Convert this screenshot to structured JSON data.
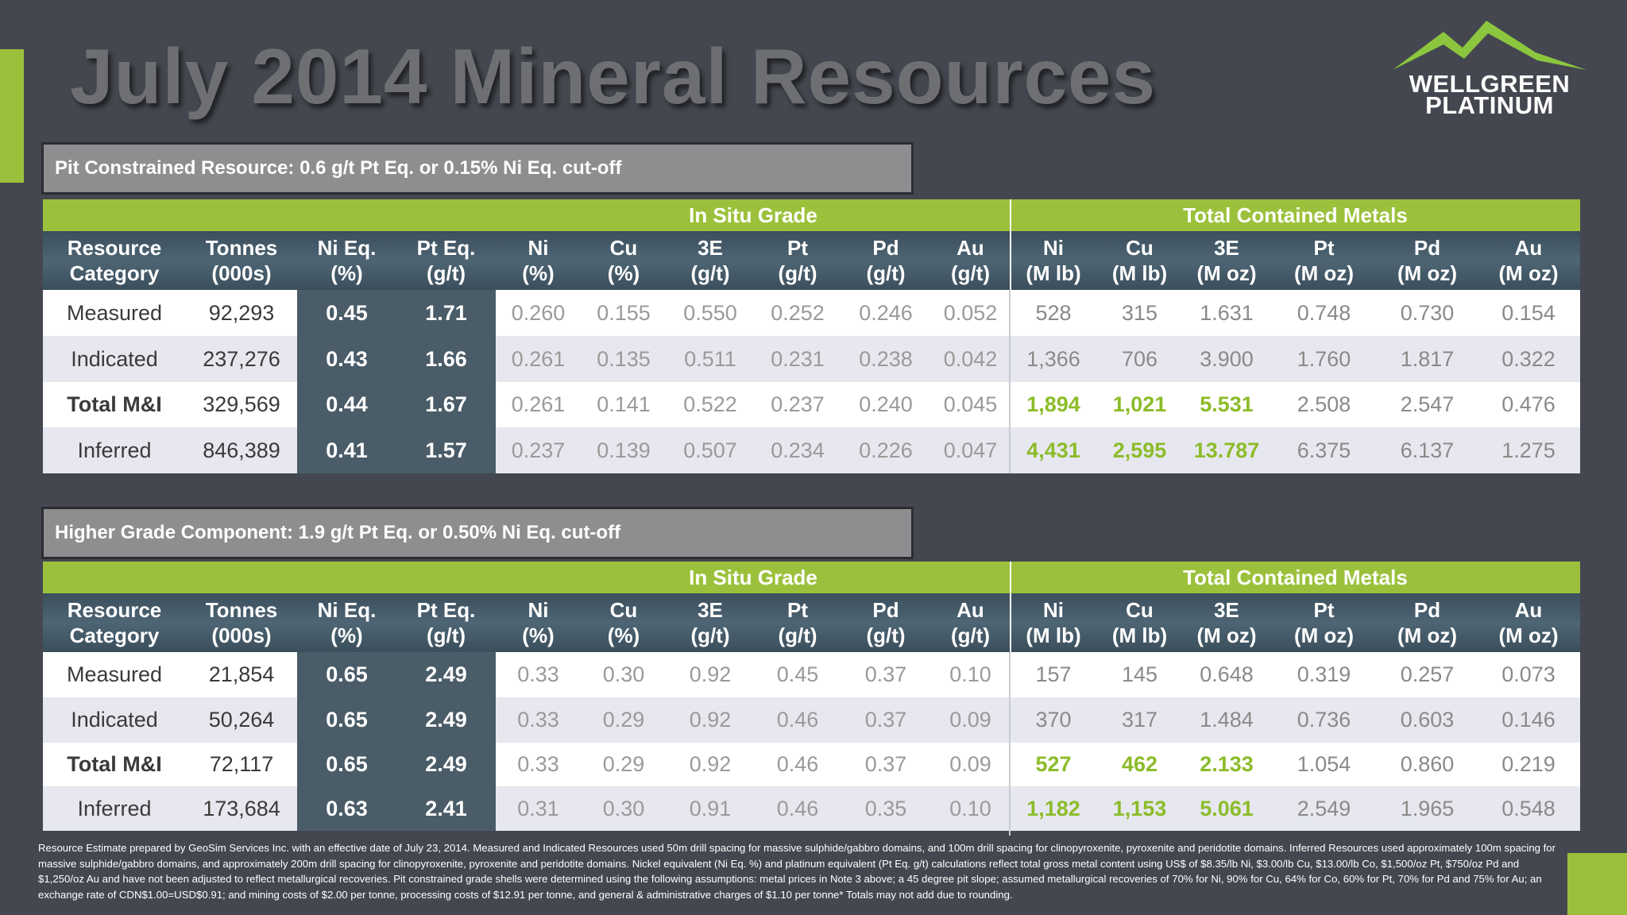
{
  "title": "July 2014 Mineral Resources",
  "logo": {
    "line1": "WELLGREEN",
    "line2": "PLATINUM",
    "mountain_color": "#8cc63f"
  },
  "colors": {
    "accent": "#9bc13c",
    "header": "#4a5c68",
    "highlight": "#8cbc2a"
  },
  "headers": {
    "group_grade": "In Situ Grade",
    "group_metals": "Total Contained Metals",
    "columns": [
      [
        "Resource",
        "Category"
      ],
      [
        "Tonnes",
        "(000s)"
      ],
      [
        "Ni Eq.",
        "(%)"
      ],
      [
        "Pt Eq.",
        "(g/t)"
      ],
      [
        "Ni",
        "(%)"
      ],
      [
        "Cu",
        "(%)"
      ],
      [
        "3E",
        "(g/t)"
      ],
      [
        "Pt",
        "(g/t)"
      ],
      [
        "Pd",
        "(g/t)"
      ],
      [
        "Au",
        "(g/t)"
      ],
      [
        "Ni",
        "(M lb)"
      ],
      [
        "Cu",
        "(M lb)"
      ],
      [
        "3E",
        "(M oz)"
      ],
      [
        "Pt",
        "(M oz)"
      ],
      [
        "Pd",
        "(M oz)"
      ],
      [
        "Au",
        "(M oz)"
      ]
    ]
  },
  "tables": [
    {
      "label": "Pit Constrained Resource: 0.6 g/t Pt Eq. or 0.15% Ni Eq. cut-off",
      "rows": [
        {
          "cells": [
            "Measured",
            "92,293",
            "0.45",
            "1.71",
            "0.260",
            "0.155",
            "0.550",
            "0.252",
            "0.246",
            "0.052",
            "528",
            "315",
            "1.631",
            "0.748",
            "0.730",
            "0.154"
          ]
        },
        {
          "cells": [
            "Indicated",
            "237,276",
            "0.43",
            "1.66",
            "0.261",
            "0.135",
            "0.511",
            "0.231",
            "0.238",
            "0.042",
            "1,366",
            "706",
            "3.900",
            "1.760",
            "1.817",
            "0.322"
          ]
        },
        {
          "cells": [
            "Total M&I",
            "329,569",
            "0.44",
            "1.67",
            "0.261",
            "0.141",
            "0.522",
            "0.237",
            "0.240",
            "0.045",
            "1,894",
            "1,021",
            "5.531",
            "2.508",
            "2.547",
            "0.476"
          ]
        },
        {
          "cells": [
            "Inferred",
            "846,389",
            "0.41",
            "1.57",
            "0.237",
            "0.139",
            "0.507",
            "0.234",
            "0.226",
            "0.047",
            "4,431",
            "2,595",
            "13.787",
            "6.375",
            "6.137",
            "1.275"
          ]
        }
      ]
    },
    {
      "label": "Higher Grade Component: 1.9 g/t Pt Eq. or 0.50% Ni Eq. cut-off",
      "rows": [
        {
          "cells": [
            "Measured",
            "21,854",
            "0.65",
            "2.49",
            "0.33",
            "0.30",
            "0.92",
            "0.45",
            "0.37",
            "0.10",
            "157",
            "145",
            "0.648",
            "0.319",
            "0.257",
            "0.073"
          ]
        },
        {
          "cells": [
            "Indicated",
            "50,264",
            "0.65",
            "2.49",
            "0.33",
            "0.29",
            "0.92",
            "0.46",
            "0.37",
            "0.09",
            "370",
            "317",
            "1.484",
            "0.736",
            "0.603",
            "0.146"
          ]
        },
        {
          "cells": [
            "Total M&I",
            "72,117",
            "0.65",
            "2.49",
            "0.33",
            "0.29",
            "0.92",
            "0.46",
            "0.37",
            "0.09",
            "527",
            "462",
            "2.133",
            "1.054",
            "0.860",
            "0.219"
          ]
        },
        {
          "cells": [
            "Inferred",
            "173,684",
            "0.63",
            "2.41",
            "0.31",
            "0.30",
            "0.91",
            "0.46",
            "0.35",
            "0.10",
            "1,182",
            "1,153",
            "5.061",
            "2.549",
            "1.965",
            "0.548"
          ]
        }
      ]
    }
  ],
  "footnote": "Resource Estimate prepared by GeoSim Services Inc. with an effective date of July 23, 2014.  Measured and Indicated Resources used 50m drill spacing for massive sulphide/gabbro domains, and 100m drill spacing for clinopyroxenite, pyroxenite and peridotite domains. Inferred Resources used approximately 100m spacing for massive  sulphide/gabbro  domains, and approximately 200m  drill spacing for clinopyroxenite, pyroxenite  and peridotite domains. Nickel equivalent (Ni Eq. %) and platinum equivalent (Pt Eq. g/t) calculations reflect total gross metal content using US$ of $8.35/lb Ni, $3.00/lb Cu, $13.00/lb Co, $1,500/oz Pt, $750/oz Pd and $1,250/oz Au and have not been adjusted to reflect metallurgical recoveries.  Pit constrained grade shells were determined using the following assumptions: metal prices in Note 3 above; a 45 degree pit slope; assumed metallurgical recoveries of 70% for Ni, 90% for Cu, 64% for Co, 60% for Pt, 70% for Pd and 75% for Au; an exchange rate of CDN$1.00=USD$0.91; and mining costs of $2.00 per tonne, processing costs of $12.91 per tonne, and general & administrative charges of $1.10 per tonne* Totals may not add due to rounding."
}
